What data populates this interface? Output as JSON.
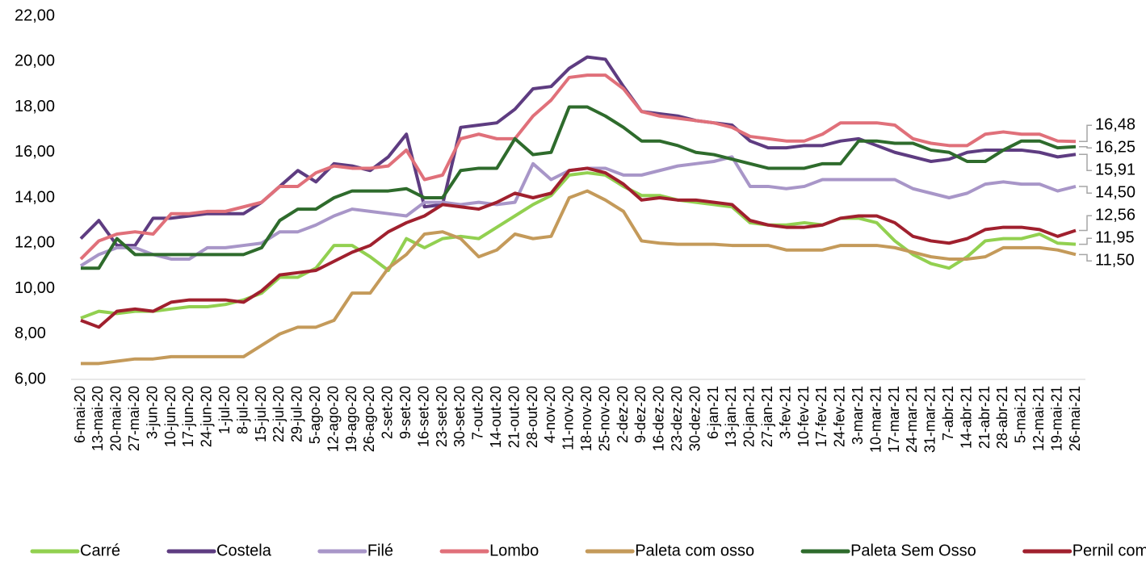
{
  "chart_data": {
    "type": "line",
    "x": [
      "6-mai-20",
      "13-mai-20",
      "20-mai-20",
      "27-mai-20",
      "3-jun-20",
      "10-jun-20",
      "17-jun-20",
      "24-jun-20",
      "1-jul-20",
      "8-jul-20",
      "15-jul-20",
      "22-jul-20",
      "29-jul-20",
      "5-ago-20",
      "12-ago-20",
      "19-ago-20",
      "26-ago-20",
      "2-set-20",
      "9-set-20",
      "16-set-20",
      "23-set-20",
      "30-set-20",
      "7-out-20",
      "14-out-20",
      "21-out-20",
      "28-out-20",
      "4-nov-20",
      "11-nov-20",
      "18-nov-20",
      "25-nov-20",
      "2-dez-20",
      "9-dez-20",
      "16-dez-20",
      "23-dez-20",
      "30-dez-20",
      "6-jan-21",
      "13-jan-21",
      "20-jan-21",
      "27-jan-21",
      "3-fev-21",
      "10-fev-21",
      "17-fev-21",
      "24-fev-21",
      "3-mar-21",
      "10-mar-21",
      "17-mar-21",
      "24-mar-21",
      "31-mar-21",
      "7-abr-21",
      "14-abr-21",
      "21-abr-21",
      "28-abr-21",
      "5-mai-21",
      "12-mai-21",
      "19-mai-21",
      "26-mai-21"
    ],
    "ylim": [
      6,
      22
    ],
    "yticks": [
      {
        "value": 6,
        "label": "6,00"
      },
      {
        "value": 8,
        "label": "8,00"
      },
      {
        "value": 10,
        "label": "10,00"
      },
      {
        "value": 12,
        "label": "12,00"
      },
      {
        "value": 14,
        "label": "14,00"
      },
      {
        "value": 16,
        "label": "16,00"
      },
      {
        "value": 18,
        "label": "18,00"
      },
      {
        "value": 20,
        "label": "20,00"
      },
      {
        "value": 22,
        "label": "22,00"
      }
    ],
    "grid": false,
    "legend": "bottom",
    "series": [
      {
        "name": "Carré",
        "color": "#92d050",
        "end_label": "11,95",
        "values": [
          8.7,
          9.0,
          8.9,
          9.0,
          9.0,
          9.1,
          9.2,
          9.2,
          9.3,
          9.5,
          9.8,
          10.5,
          10.5,
          10.9,
          11.9,
          11.9,
          11.4,
          10.8,
          12.2,
          11.8,
          12.2,
          12.3,
          12.2,
          12.7,
          13.2,
          13.7,
          14.1,
          15.0,
          15.1,
          15.0,
          14.5,
          14.1,
          14.1,
          13.9,
          13.8,
          13.7,
          13.6,
          12.9,
          12.8,
          12.8,
          12.9,
          12.8,
          13.1,
          13.1,
          12.9,
          12.1,
          11.5,
          11.1,
          10.9,
          11.4,
          12.1,
          12.2,
          12.2,
          12.4,
          12.0,
          11.95
        ]
      },
      {
        "name": "Costela",
        "color": "#5e3c81",
        "end_label": "15,91",
        "values": [
          12.2,
          13.0,
          11.9,
          11.9,
          13.1,
          13.1,
          13.2,
          13.3,
          13.3,
          13.3,
          13.8,
          14.5,
          15.2,
          14.7,
          15.5,
          15.4,
          15.2,
          15.8,
          16.8,
          13.6,
          13.7,
          17.1,
          17.2,
          17.3,
          17.9,
          18.8,
          18.9,
          19.7,
          20.2,
          20.1,
          18.9,
          17.8,
          17.7,
          17.6,
          17.4,
          17.3,
          17.2,
          16.5,
          16.2,
          16.2,
          16.3,
          16.3,
          16.5,
          16.6,
          16.3,
          16.0,
          15.8,
          15.6,
          15.7,
          16.0,
          16.1,
          16.1,
          16.1,
          16.0,
          15.8,
          15.91
        ]
      },
      {
        "name": "Filé",
        "color": "#a896c8",
        "end_label": "14,50",
        "values": [
          11.0,
          11.5,
          11.8,
          11.8,
          11.5,
          11.3,
          11.3,
          11.8,
          11.8,
          11.9,
          12.0,
          12.5,
          12.5,
          12.8,
          13.2,
          13.5,
          13.4,
          13.3,
          13.2,
          13.8,
          13.8,
          13.7,
          13.8,
          13.7,
          13.8,
          15.5,
          14.8,
          15.2,
          15.3,
          15.3,
          15.0,
          15.0,
          15.2,
          15.4,
          15.5,
          15.6,
          15.8,
          14.5,
          14.5,
          14.4,
          14.5,
          14.8,
          14.8,
          14.8,
          14.8,
          14.8,
          14.4,
          14.2,
          14.0,
          14.2,
          14.6,
          14.7,
          14.6,
          14.6,
          14.3,
          14.5
        ]
      },
      {
        "name": "Lombo",
        "color": "#e0707a",
        "end_label": "16,48",
        "values": [
          11.3,
          12.1,
          12.4,
          12.5,
          12.4,
          13.3,
          13.3,
          13.4,
          13.4,
          13.6,
          13.8,
          14.5,
          14.5,
          15.1,
          15.4,
          15.3,
          15.3,
          15.4,
          16.1,
          14.8,
          15.0,
          16.6,
          16.8,
          16.6,
          16.6,
          17.6,
          18.3,
          19.3,
          19.4,
          19.4,
          18.8,
          17.8,
          17.6,
          17.5,
          17.4,
          17.3,
          17.1,
          16.7,
          16.6,
          16.5,
          16.5,
          16.8,
          17.3,
          17.3,
          17.3,
          17.2,
          16.6,
          16.4,
          16.3,
          16.3,
          16.8,
          16.9,
          16.8,
          16.8,
          16.5,
          16.48
        ]
      },
      {
        "name": "Paleta com osso",
        "color": "#c49a5a",
        "end_label": "11,50",
        "values": [
          6.7,
          6.7,
          6.8,
          6.9,
          6.9,
          7.0,
          7.0,
          7.0,
          7.0,
          7.0,
          7.5,
          8.0,
          8.3,
          8.3,
          8.6,
          9.8,
          9.8,
          10.9,
          11.5,
          12.4,
          12.5,
          12.2,
          11.4,
          11.7,
          12.4,
          12.2,
          12.3,
          14.0,
          14.3,
          13.9,
          13.4,
          12.1,
          12.0,
          11.95,
          11.95,
          11.95,
          11.9,
          11.9,
          11.9,
          11.7,
          11.7,
          11.7,
          11.9,
          11.9,
          11.9,
          11.8,
          11.6,
          11.4,
          11.3,
          11.3,
          11.4,
          11.8,
          11.8,
          11.8,
          11.7,
          11.5
        ]
      },
      {
        "name": "Paleta Sem Osso",
        "color": "#2e6b2c",
        "end_label": "16,25",
        "values": [
          10.9,
          10.9,
          12.2,
          11.5,
          11.5,
          11.5,
          11.5,
          11.5,
          11.5,
          11.5,
          11.8,
          13.0,
          13.5,
          13.5,
          14.0,
          14.3,
          14.3,
          14.3,
          14.4,
          14.0,
          14.0,
          15.2,
          15.3,
          15.3,
          16.6,
          15.9,
          16.0,
          18.0,
          18.0,
          17.6,
          17.1,
          16.5,
          16.5,
          16.3,
          16.0,
          15.9,
          15.7,
          15.5,
          15.3,
          15.3,
          15.3,
          15.5,
          15.5,
          16.5,
          16.5,
          16.4,
          16.4,
          16.1,
          16.0,
          15.6,
          15.6,
          16.1,
          16.5,
          16.5,
          16.2,
          16.25
        ]
      },
      {
        "name": "Pernil com osso",
        "color": "#a0202e",
        "end_label": "12,56",
        "values": [
          8.6,
          8.3,
          9.0,
          9.1,
          9.0,
          9.4,
          9.5,
          9.5,
          9.5,
          9.4,
          9.9,
          10.6,
          10.7,
          10.8,
          11.2,
          11.6,
          11.9,
          12.5,
          12.9,
          13.2,
          13.7,
          13.6,
          13.5,
          13.8,
          14.2,
          14.0,
          14.2,
          15.2,
          15.3,
          15.1,
          14.6,
          13.9,
          14.0,
          13.9,
          13.9,
          13.8,
          13.7,
          13.0,
          12.8,
          12.7,
          12.7,
          12.8,
          13.1,
          13.2,
          13.2,
          12.9,
          12.3,
          12.1,
          12.0,
          12.2,
          12.6,
          12.7,
          12.7,
          12.6,
          12.3,
          12.56
        ]
      }
    ]
  }
}
